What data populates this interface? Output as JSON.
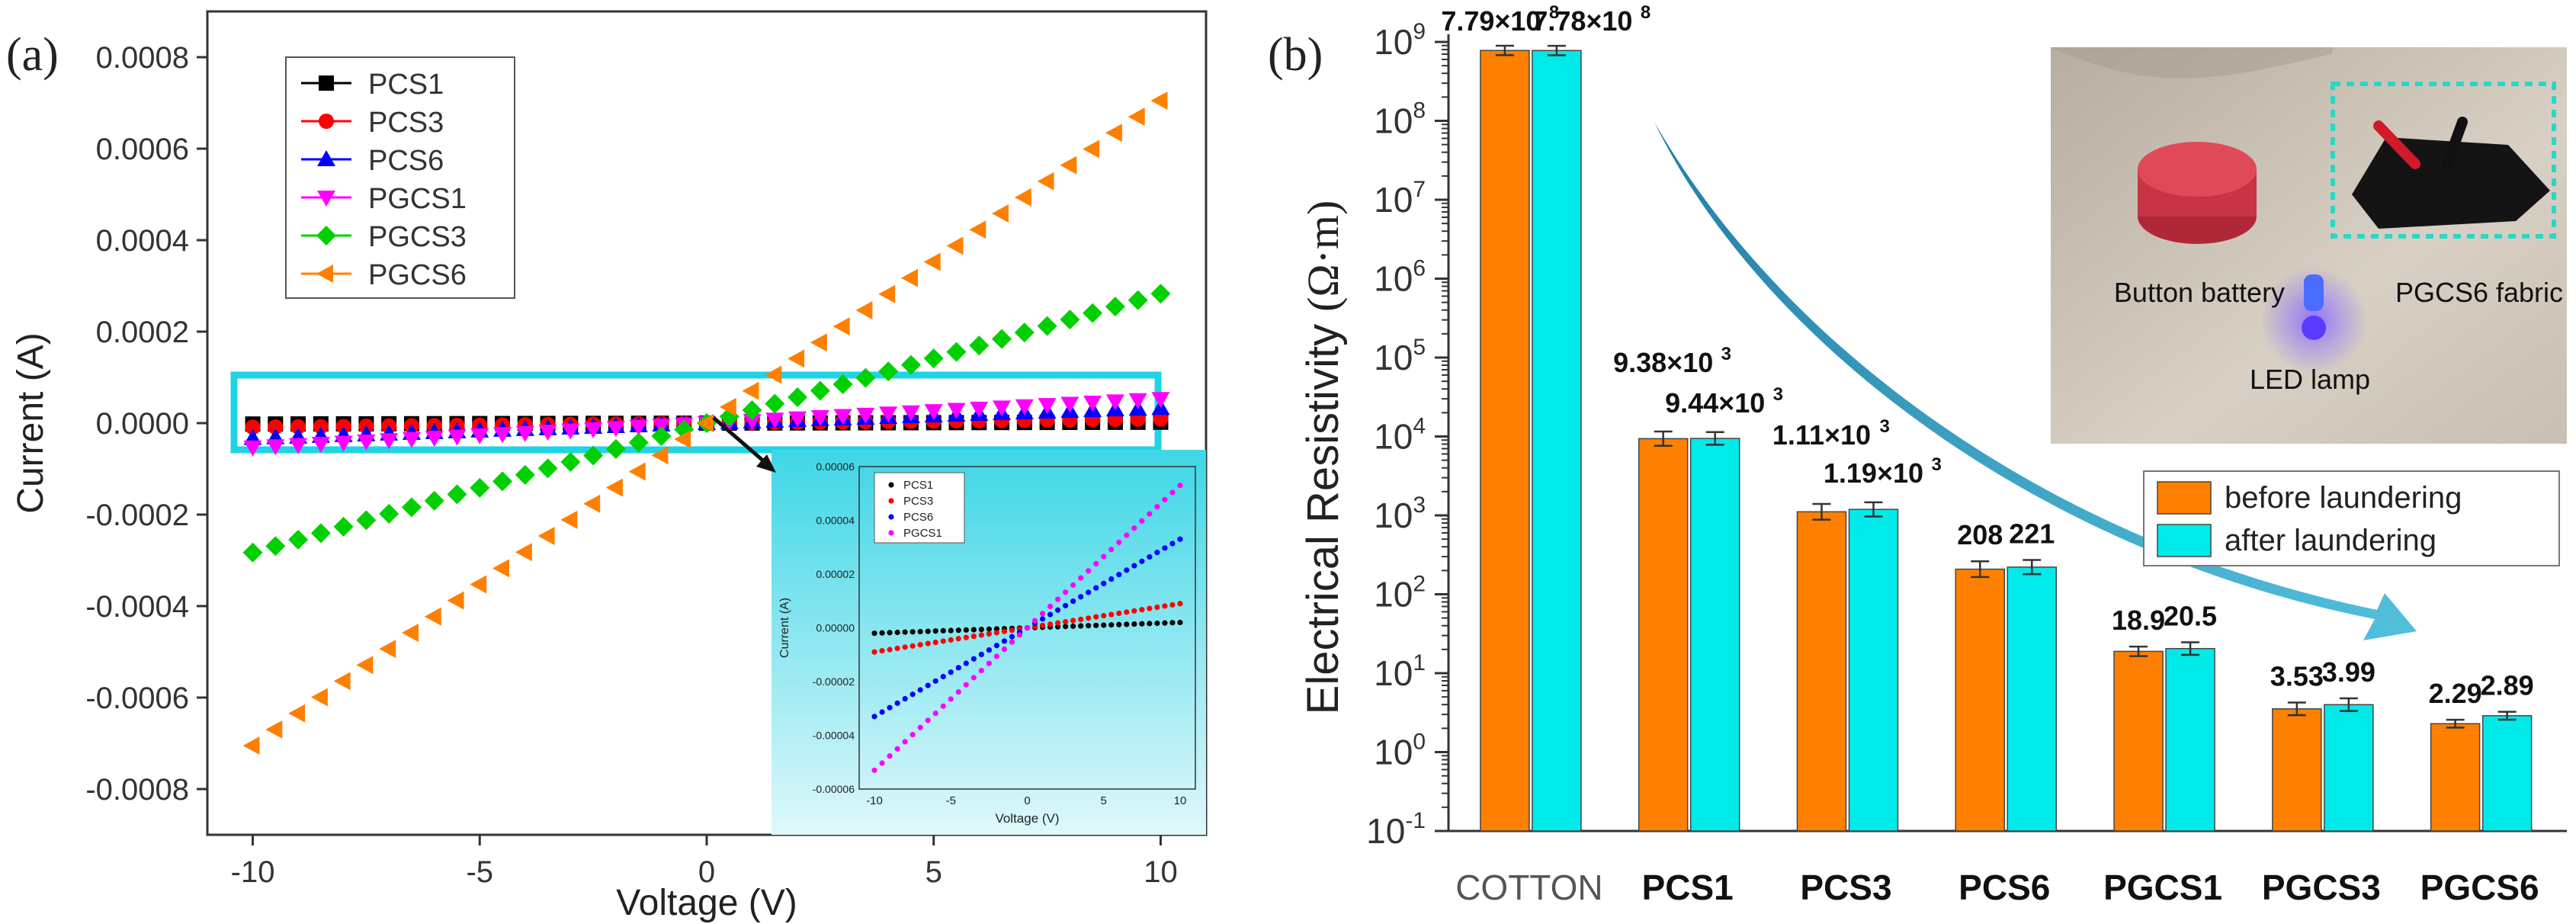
{
  "chart_data": [
    {
      "panel": "(a)",
      "type": "scatter",
      "title": "",
      "xlabel": "Voltage (V)",
      "ylabel": "Current (A)",
      "xlim": [
        -11,
        11
      ],
      "ylim": [
        -0.0009,
        0.0009
      ],
      "xticks": [
        -10,
        -5,
        0,
        5,
        10
      ],
      "yticks": [
        -0.0008,
        -0.0006,
        -0.0004,
        -0.0002,
        0.0,
        0.0002,
        0.0004,
        0.0006,
        0.0008
      ],
      "ytick_labels": [
        "-0.0008",
        "-0.0006",
        "-0.0004",
        "-0.0002",
        "0.0000",
        "0.0002",
        "0.0004",
        "0.0006",
        "0.0008"
      ],
      "x": [
        -10,
        -9.5,
        -9,
        -8.5,
        -8,
        -7.5,
        -7,
        -6.5,
        -6,
        -5.5,
        -5,
        -4.5,
        -4,
        -3.5,
        -3,
        -2.5,
        -2,
        -1.5,
        -1,
        -0.5,
        0,
        0.5,
        1,
        1.5,
        2,
        2.5,
        3,
        3.5,
        4,
        4.5,
        5,
        5.5,
        6,
        6.5,
        7,
        7.5,
        8,
        8.5,
        9,
        9.5,
        10
      ],
      "series": [
        {
          "name": "PCS1",
          "color": "#000000",
          "marker": "square",
          "slope": 2e-07
        },
        {
          "name": "PCS3",
          "color": "#ff0000",
          "marker": "circle",
          "slope": 9e-07
        },
        {
          "name": "PCS6",
          "color": "#0000ff",
          "marker": "triangle-up",
          "slope": 3.3e-06
        },
        {
          "name": "PGCS1",
          "color": "#ff00ff",
          "marker": "triangle-down",
          "slope": 5.3e-06
        },
        {
          "name": "PGCS3",
          "color": "#00d000",
          "marker": "diamond",
          "slope": 2.83e-05
        },
        {
          "name": "PGCS6",
          "color": "#ff8000",
          "marker": "triangle-left",
          "slope": 7.05e-05
        }
      ],
      "inset": {
        "xlabel": "Voltage (V)",
        "ylabel": "Current (A)",
        "xlim": [
          -11,
          11
        ],
        "ylim": [
          -6e-05,
          6e-05
        ],
        "xticks": [
          -10,
          -5,
          0,
          5,
          10
        ],
        "yticks": [
          -6e-05,
          -4e-05,
          -2e-05,
          0.0,
          2e-05,
          4e-05,
          6e-05
        ],
        "ytick_labels": [
          "-0.00006",
          "-0.00004",
          "-0.00002",
          "0.00000",
          "0.00002",
          "0.00004",
          "0.00006"
        ],
        "series_names": [
          "PCS1",
          "PCS3",
          "PCS6",
          "PGCS1"
        ]
      }
    },
    {
      "panel": "(b)",
      "type": "bar",
      "title": "",
      "xlabel": "",
      "ylabel": "Electrical Resistivity (Ω·m)",
      "ylabel_main": "Electrical Resistivity ",
      "ylabel_unit": "(Ω·m)",
      "scale": "log",
      "ylim_exp": [
        -1,
        9
      ],
      "ytick_exponents": [
        -1,
        0,
        1,
        2,
        3,
        4,
        5,
        6,
        7,
        8,
        9
      ],
      "categories": [
        "COTTON",
        "PCS1",
        "PCS3",
        "PCS6",
        "PGCS1",
        "PGCS3",
        "PGCS6"
      ],
      "series": [
        {
          "name": "before laundering",
          "color": "#ff8000",
          "values": [
            779000000,
            9380,
            1110,
            208,
            18.9,
            3.53,
            2.29
          ],
          "errors": [
            0.06,
            0.09,
            0.1,
            0.1,
            0.06,
            0.08,
            0.05
          ]
        },
        {
          "name": "after laundering",
          "color": "#00eaea",
          "values": [
            778000000,
            9440,
            1190,
            221,
            20.5,
            3.99,
            2.89
          ],
          "errors": [
            0.06,
            0.08,
            0.09,
            0.09,
            0.08,
            0.08,
            0.05
          ]
        }
      ],
      "value_labels": [
        {
          "cat": 0,
          "ser": 0,
          "mant": "7.79×10",
          "exp": "8"
        },
        {
          "cat": 0,
          "ser": 1,
          "mant": "7.78×10",
          "exp": "8"
        },
        {
          "cat": 1,
          "ser": 0,
          "mant": "9.38×10",
          "exp": "3"
        },
        {
          "cat": 1,
          "ser": 1,
          "mant": "9.44×10",
          "exp": "3"
        },
        {
          "cat": 2,
          "ser": 0,
          "mant": "1.11×10",
          "exp": "3"
        },
        {
          "cat": 2,
          "ser": 1,
          "mant": "1.19×10",
          "exp": "3"
        },
        {
          "cat": 3,
          "ser": 0,
          "mant": "208",
          "exp": ""
        },
        {
          "cat": 3,
          "ser": 1,
          "mant": "221",
          "exp": ""
        },
        {
          "cat": 4,
          "ser": 0,
          "mant": "18.9",
          "exp": ""
        },
        {
          "cat": 4,
          "ser": 1,
          "mant": "20.5",
          "exp": ""
        },
        {
          "cat": 5,
          "ser": 0,
          "mant": "3.53",
          "exp": ""
        },
        {
          "cat": 5,
          "ser": 1,
          "mant": "3.99",
          "exp": ""
        },
        {
          "cat": 6,
          "ser": 0,
          "mant": "2.29",
          "exp": ""
        },
        {
          "cat": 6,
          "ser": 1,
          "mant": "2.89",
          "exp": ""
        }
      ],
      "photo_labels": {
        "battery": "Button battery",
        "fabric": "PGCS6 fabric",
        "led": "LED lamp"
      }
    }
  ],
  "colors": {
    "highlight_box": "#1fd3e6",
    "arrow": "#1a8fb0"
  }
}
